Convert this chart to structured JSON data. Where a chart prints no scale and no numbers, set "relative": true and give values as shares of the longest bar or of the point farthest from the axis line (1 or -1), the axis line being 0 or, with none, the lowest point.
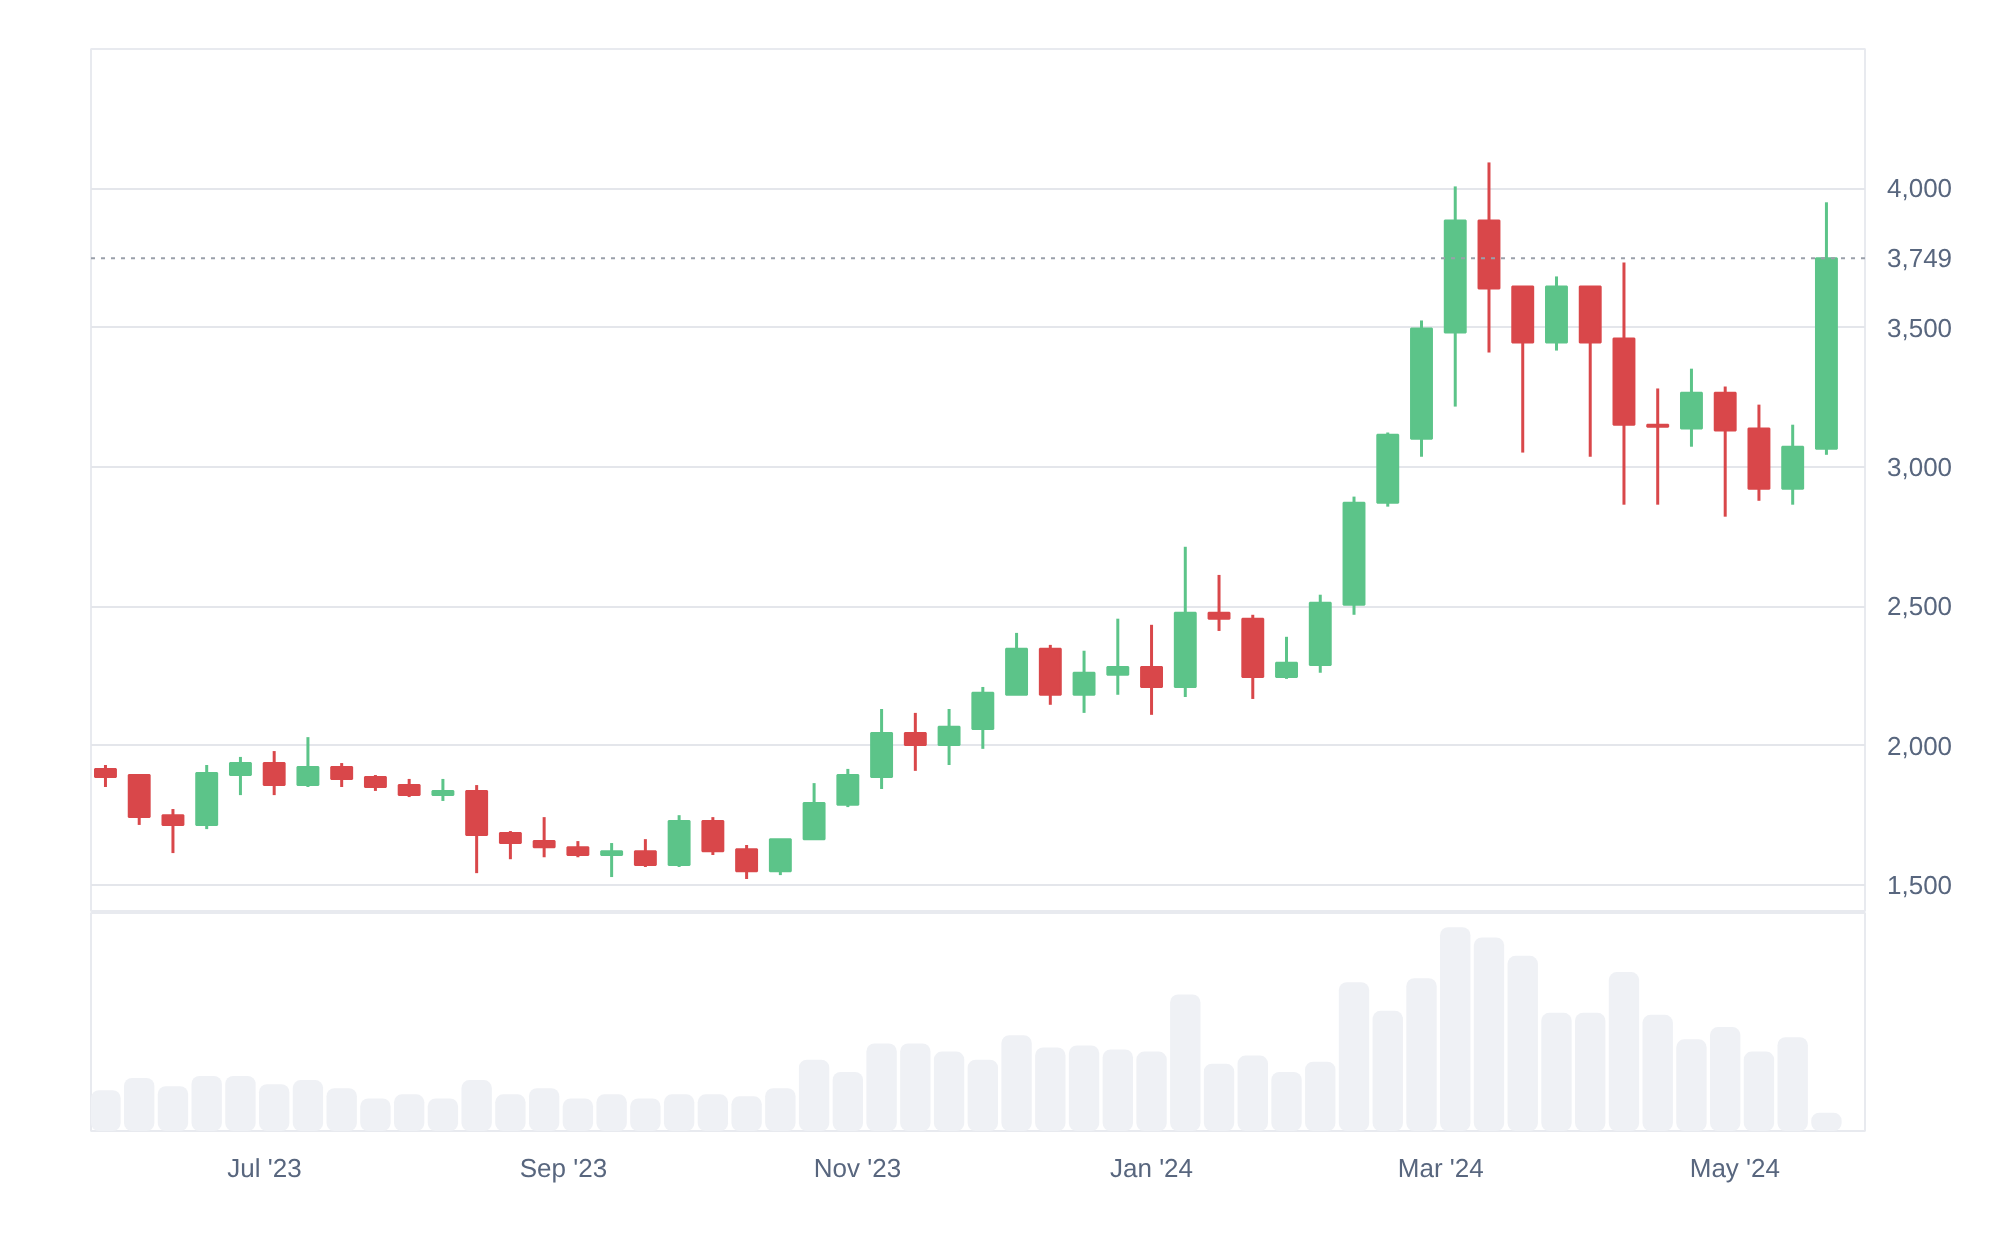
{
  "chart_data": [
    {
      "type": "candlestick",
      "x": [
        "2023-05-29",
        "2023-06-05",
        "2023-06-12",
        "2023-06-19",
        "2023-06-26",
        "2023-07-03",
        "2023-07-10",
        "2023-07-17",
        "2023-07-24",
        "2023-07-31",
        "2023-08-07",
        "2023-08-14",
        "2023-08-21",
        "2023-08-28",
        "2023-09-04",
        "2023-09-11",
        "2023-09-18",
        "2023-09-25",
        "2023-10-02",
        "2023-10-09",
        "2023-10-16",
        "2023-10-23",
        "2023-10-30",
        "2023-11-06",
        "2023-11-13",
        "2023-11-20",
        "2023-11-27",
        "2023-12-04",
        "2023-12-11",
        "2023-12-18",
        "2023-12-25",
        "2024-01-01",
        "2024-01-08",
        "2024-01-15",
        "2024-01-22",
        "2024-01-29",
        "2024-02-05",
        "2024-02-12",
        "2024-02-19",
        "2024-02-26",
        "2024-03-04",
        "2024-03-11",
        "2024-03-18",
        "2024-03-25",
        "2024-04-01",
        "2024-04-08",
        "2024-04-15",
        "2024-04-22",
        "2024-04-29",
        "2024-05-06",
        "2024-05-13",
        "2024-05-20"
      ],
      "ohlc": [
        [
          1917,
          1931,
          1852,
          1888
        ],
        [
          1895,
          1895,
          1716,
          1744
        ],
        [
          1751,
          1773,
          1615,
          1716
        ],
        [
          1716,
          1931,
          1701,
          1902
        ],
        [
          1895,
          1960,
          1823,
          1938
        ],
        [
          1938,
          1981,
          1823,
          1859
        ],
        [
          1859,
          2031,
          1852,
          1924
        ],
        [
          1924,
          1938,
          1852,
          1881
        ],
        [
          1888,
          1895,
          1838,
          1852
        ],
        [
          1859,
          1881,
          1816,
          1823
        ],
        [
          1823,
          1881,
          1802,
          1838
        ],
        [
          1838,
          1859,
          1543,
          1680
        ],
        [
          1687,
          1694,
          1593,
          1651
        ],
        [
          1658,
          1744,
          1600,
          1636
        ],
        [
          1636,
          1658,
          1600,
          1608
        ],
        [
          1608,
          1651,
          1529,
          1622
        ],
        [
          1622,
          1665,
          1565,
          1572
        ],
        [
          1572,
          1751,
          1565,
          1730
        ],
        [
          1730,
          1744,
          1608,
          1622
        ],
        [
          1629,
          1644,
          1522,
          1550
        ],
        [
          1550,
          1665,
          1536,
          1665
        ],
        [
          1665,
          1866,
          1665,
          1795
        ],
        [
          1788,
          1917,
          1780,
          1895
        ],
        [
          1888,
          2132,
          1845,
          2046
        ],
        [
          2046,
          2118,
          1910,
          2003
        ],
        [
          2003,
          2132,
          1931,
          2068
        ],
        [
          2060,
          2211,
          1989,
          2190
        ],
        [
          2183,
          2405,
          2183,
          2348
        ],
        [
          2348,
          2362,
          2147,
          2183
        ],
        [
          2183,
          2341,
          2118,
          2262
        ],
        [
          2255,
          2456,
          2183,
          2283
        ],
        [
          2283,
          2434,
          2111,
          2211
        ],
        [
          2211,
          2714,
          2175,
          2477
        ],
        [
          2477,
          2613,
          2412,
          2456
        ],
        [
          2456,
          2470,
          2168,
          2247
        ],
        [
          2247,
          2391,
          2240,
          2298
        ],
        [
          2290,
          2542,
          2262,
          2513
        ],
        [
          2506,
          2894,
          2470,
          2872
        ],
        [
          2872,
          3124,
          2858,
          3116
        ],
        [
          3102,
          3526,
          3037,
          3497
        ],
        [
          3483,
          4007,
          3217,
          3885
        ],
        [
          3885,
          4093,
          3411,
          3641
        ],
        [
          3648,
          3648,
          3052,
          3447
        ],
        [
          3447,
          3684,
          3418,
          3648
        ],
        [
          3648,
          3648,
          3037,
          3447
        ],
        [
          3461,
          3734,
          2865,
          3152
        ],
        [
          3152,
          3282,
          2865,
          3145
        ],
        [
          3138,
          3353,
          3073,
          3267
        ],
        [
          3267,
          3289,
          2822,
          3131
        ],
        [
          3138,
          3224,
          2879,
          2922
        ],
        [
          2922,
          3152,
          2865,
          3073
        ],
        [
          3066,
          3950,
          3044,
          3749
        ]
      ],
      "colors": [
        "#d9474a",
        "#d9474a",
        "#d9474a",
        "#5cc489",
        "#5cc489",
        "#d9474a",
        "#5cc489",
        "#d9474a",
        "#d9474a",
        "#d9474a",
        "#5cc489",
        "#d9474a",
        "#d9474a",
        "#d9474a",
        "#d9474a",
        "#5cc489",
        "#d9474a",
        "#5cc489",
        "#d9474a",
        "#d9474a",
        "#5cc489",
        "#5cc489",
        "#5cc489",
        "#5cc489",
        "#d9474a",
        "#5cc489",
        "#5cc489",
        "#5cc489",
        "#d9474a",
        "#5cc489",
        "#5cc489",
        "#d9474a",
        "#5cc489",
        "#d9474a",
        "#d9474a",
        "#5cc489",
        "#5cc489",
        "#5cc489",
        "#5cc489",
        "#5cc489",
        "#5cc489",
        "#d9474a",
        "#d9474a",
        "#5cc489",
        "#d9474a",
        "#d9474a",
        "#d9474a",
        "#5cc489",
        "#d9474a",
        "#d9474a",
        "#5cc489",
        "#5cc489"
      ],
      "xlim": [
        "2023-05-26",
        "2024-05-28"
      ],
      "ylim": [
        1400,
        4500
      ],
      "yticks": [
        {
          "value": 1500,
          "label": "1,500"
        },
        {
          "value": 2000,
          "label": "2,000"
        },
        {
          "value": 2500,
          "label": "2,500"
        },
        {
          "value": 3000,
          "label": "3,000"
        },
        {
          "value": 3500,
          "label": "3,500"
        },
        {
          "value": 4000,
          "label": "4,000"
        }
      ],
      "ref_lines": [
        {
          "axis": "y",
          "value": 3749,
          "label": "3,749",
          "color": "#9aa0aa",
          "line_style": "dotted"
        }
      ],
      "grid": "y",
      "tick_labels": "y"
    },
    {
      "type": "bar",
      "relative": true,
      "color": "#eff1f5",
      "x": [
        "2023-05-29",
        "2023-06-05",
        "2023-06-12",
        "2023-06-19",
        "2023-06-26",
        "2023-07-03",
        "2023-07-10",
        "2023-07-17",
        "2023-07-24",
        "2023-07-31",
        "2023-08-07",
        "2023-08-14",
        "2023-08-21",
        "2023-08-28",
        "2023-09-04",
        "2023-09-11",
        "2023-09-18",
        "2023-09-25",
        "2023-10-02",
        "2023-10-09",
        "2023-10-16",
        "2023-10-23",
        "2023-10-30",
        "2023-11-06",
        "2023-11-13",
        "2023-11-20",
        "2023-11-27",
        "2023-12-04",
        "2023-12-11",
        "2023-12-18",
        "2023-12-25",
        "2024-01-01",
        "2024-01-08",
        "2024-01-15",
        "2024-01-22",
        "2024-01-29",
        "2024-02-05",
        "2024-02-12",
        "2024-02-19",
        "2024-02-26",
        "2024-03-04",
        "2024-03-11",
        "2024-03-18",
        "2024-03-25",
        "2024-04-01",
        "2024-04-08",
        "2024-04-15",
        "2024-04-22",
        "2024-04-29",
        "2024-05-06",
        "2024-05-13",
        "2024-05-20"
      ],
      "values": [
        0.2,
        0.26,
        0.22,
        0.27,
        0.27,
        0.23,
        0.25,
        0.21,
        0.16,
        0.18,
        0.16,
        0.25,
        0.18,
        0.21,
        0.16,
        0.18,
        0.16,
        0.18,
        0.18,
        0.17,
        0.21,
        0.35,
        0.29,
        0.43,
        0.43,
        0.39,
        0.35,
        0.47,
        0.41,
        0.42,
        0.4,
        0.39,
        0.67,
        0.33,
        0.37,
        0.29,
        0.34,
        0.73,
        0.59,
        0.75,
        1.0,
        0.95,
        0.86,
        0.58,
        0.58,
        0.78,
        0.57,
        0.45,
        0.51,
        0.39,
        0.46,
        0.09
      ],
      "xlim": [
        "2023-05-26",
        "2024-05-28"
      ],
      "xticks": [
        {
          "value": "2023-07-01",
          "label": "Jul '23"
        },
        {
          "value": "2023-09-01",
          "label": "Sep '23"
        },
        {
          "value": "2023-11-01",
          "label": "Nov '23"
        },
        {
          "value": "2024-01-01",
          "label": "Jan '24"
        },
        {
          "value": "2024-03-01",
          "label": "Mar '24"
        },
        {
          "value": "2024-05-01",
          "label": "May '24"
        }
      ],
      "tick_labels": "x"
    }
  ]
}
